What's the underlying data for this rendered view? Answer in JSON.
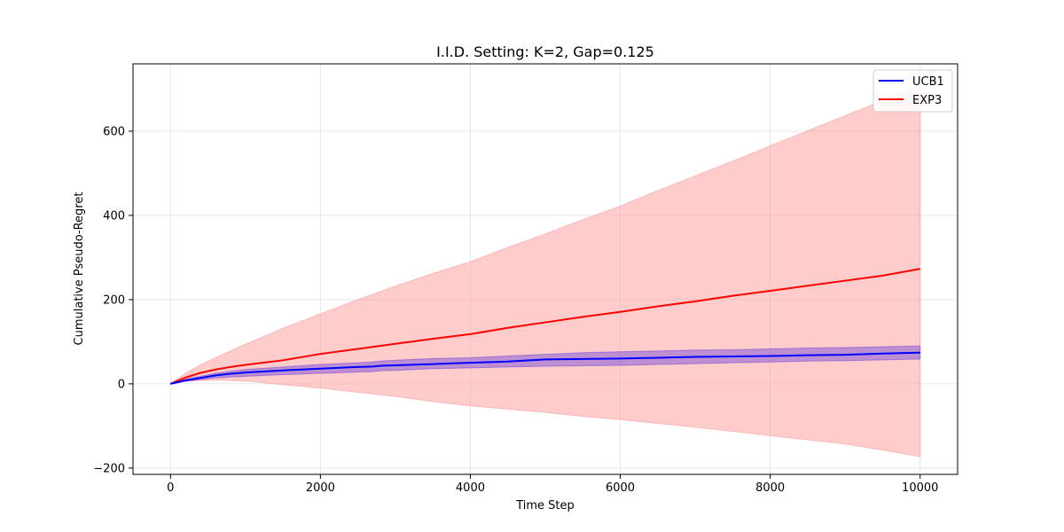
{
  "chart_data": {
    "type": "line",
    "title": "I.I.D. Setting: K=2, Gap=0.125",
    "xlabel": "Time Step",
    "ylabel": "Cumulative Pseudo-Regret",
    "xlim": [
      -500,
      10500
    ],
    "ylim": [
      -215,
      760
    ],
    "xticks": [
      0,
      2000,
      4000,
      6000,
      8000,
      10000
    ],
    "yticks": [
      -200,
      0,
      200,
      400,
      600
    ],
    "xtick_labels": [
      "0",
      "2000",
      "4000",
      "6000",
      "8000",
      "10000"
    ],
    "ytick_labels": [
      "−200",
      "0",
      "200",
      "400",
      "600"
    ],
    "grid": true,
    "legend_position": "top-right",
    "series": [
      {
        "name": "UCB1",
        "color": "#0000ff",
        "band_color": "#7b4fd6",
        "x": [
          0,
          200,
          400,
          600,
          800,
          1000,
          1500,
          2000,
          2500,
          2700,
          2800,
          3000,
          3500,
          4000,
          4500,
          5000,
          5500,
          6000,
          6500,
          7000,
          7500,
          8000,
          8500,
          9000,
          9500,
          10000
        ],
        "y": [
          0,
          8,
          14,
          20,
          24,
          27,
          32,
          36,
          40,
          41,
          43,
          44,
          47,
          50,
          53,
          58,
          59,
          60,
          62,
          64,
          65,
          66,
          68,
          69,
          72,
          74
        ],
        "lower": [
          0,
          6,
          10,
          14,
          16,
          18,
          22,
          25,
          28,
          29,
          31,
          32,
          36,
          38,
          40,
          42,
          43,
          44,
          46,
          48,
          50,
          52,
          54,
          55,
          57,
          59
        ],
        "upper": [
          0,
          11,
          18,
          25,
          30,
          34,
          40,
          46,
          50,
          52,
          54,
          56,
          60,
          62,
          66,
          70,
          74,
          76,
          78,
          80,
          81,
          83,
          85,
          86,
          88,
          90
        ]
      },
      {
        "name": "EXP3",
        "color": "#ff0000",
        "band_color": "#ff9999",
        "x": [
          0,
          200,
          400,
          600,
          800,
          1000,
          1500,
          2000,
          2500,
          3000,
          3500,
          4000,
          4500,
          5000,
          5500,
          6000,
          6500,
          7000,
          7500,
          8000,
          8500,
          9000,
          9500,
          10000
        ],
        "y": [
          0,
          15,
          26,
          34,
          40,
          45,
          56,
          71,
          83,
          95,
          107,
          118,
          133,
          146,
          159,
          171,
          184,
          196,
          209,
          221,
          233,
          245,
          257,
          273
        ],
        "lower": [
          0,
          7,
          8,
          9,
          8,
          7,
          -2,
          -10,
          -20,
          -30,
          -42,
          -52,
          -60,
          -68,
          -77,
          -85,
          -94,
          -103,
          -113,
          -123,
          -133,
          -143,
          -157,
          -173
        ],
        "upper": [
          0,
          25,
          45,
          62,
          78,
          94,
          132,
          166,
          200,
          232,
          262,
          290,
          324,
          356,
          390,
          422,
          459,
          494,
          529,
          565,
          601,
          637,
          672,
          710
        ]
      }
    ]
  }
}
